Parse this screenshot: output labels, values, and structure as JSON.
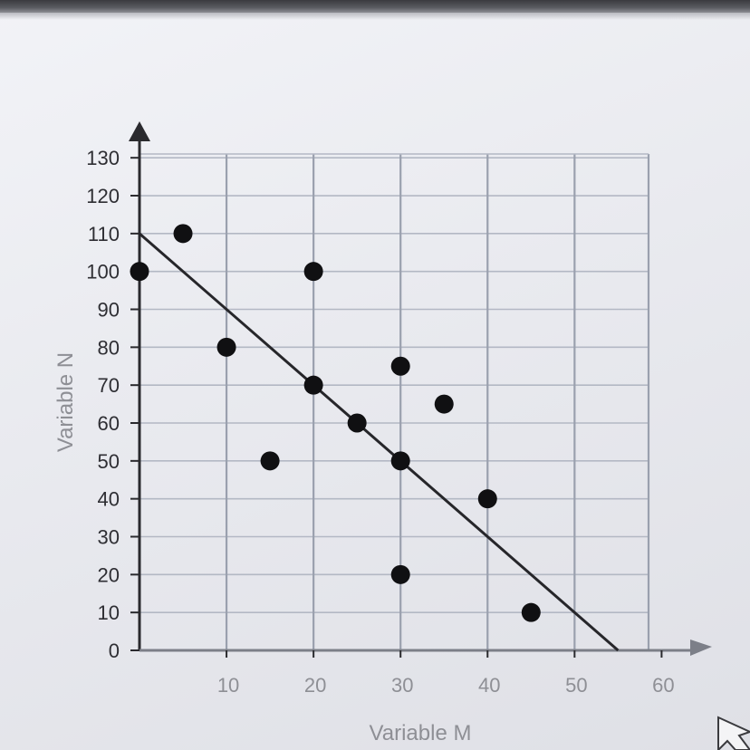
{
  "chart_data": {
    "type": "scatter",
    "title": "",
    "xlabel": "Variable M",
    "ylabel": "Variable N",
    "xlim": [
      0,
      60
    ],
    "ylim": [
      0,
      130
    ],
    "x_ticks": [
      10,
      20,
      30,
      40,
      50,
      60
    ],
    "y_ticks": [
      0,
      10,
      20,
      30,
      40,
      50,
      60,
      70,
      80,
      90,
      100,
      110,
      120,
      130
    ],
    "grid": true,
    "points": [
      {
        "x": 0,
        "y": 100
      },
      {
        "x": 5,
        "y": 110
      },
      {
        "x": 10,
        "y": 80
      },
      {
        "x": 15,
        "y": 50
      },
      {
        "x": 20,
        "y": 100
      },
      {
        "x": 20,
        "y": 70
      },
      {
        "x": 25,
        "y": 60
      },
      {
        "x": 30,
        "y": 75
      },
      {
        "x": 30,
        "y": 50
      },
      {
        "x": 30,
        "y": 20
      },
      {
        "x": 35,
        "y": 65
      },
      {
        "x": 40,
        "y": 40
      },
      {
        "x": 45,
        "y": 10
      }
    ],
    "trend_line": {
      "x": [
        0,
        55
      ],
      "y": [
        110,
        0
      ]
    }
  },
  "cursor_icon": "arrow-cursor-icon"
}
